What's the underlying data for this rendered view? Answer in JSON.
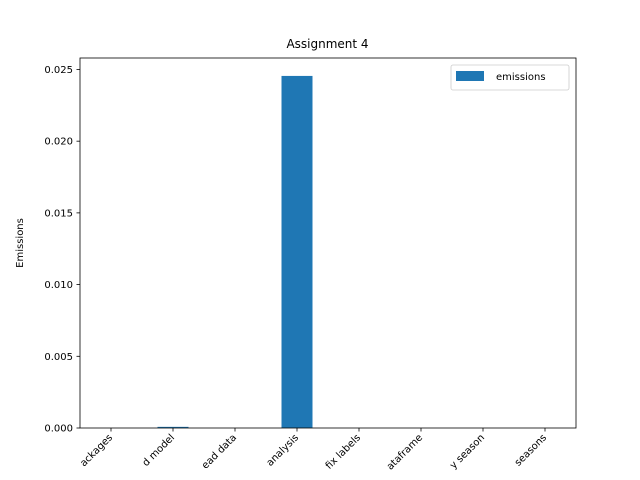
{
  "chart_data": {
    "type": "bar",
    "title": "Assignment 4",
    "xlabel": "",
    "ylabel": "Emissions",
    "categories": [
      "ackages",
      "d model",
      "ead data",
      "analysis",
      "fix labels",
      "ataframe",
      "y season",
      "seasons"
    ],
    "series": [
      {
        "name": "emissions",
        "values": [
          0.0,
          8e-05,
          0.0,
          0.02455,
          0.0,
          0.0,
          0.0,
          0.0
        ]
      }
    ],
    "ylim": [
      0,
      0.0258
    ],
    "yticks": [
      "0.000",
      "0.005",
      "0.010",
      "0.015",
      "0.020",
      "0.025"
    ],
    "ytick_values": [
      0,
      0.005,
      0.01,
      0.015,
      0.02,
      0.025
    ],
    "legend": "top-right",
    "grid": false,
    "colors": {
      "bar": "#1f77b4",
      "axes": "#000000",
      "legend_border": "#cccccc"
    }
  }
}
